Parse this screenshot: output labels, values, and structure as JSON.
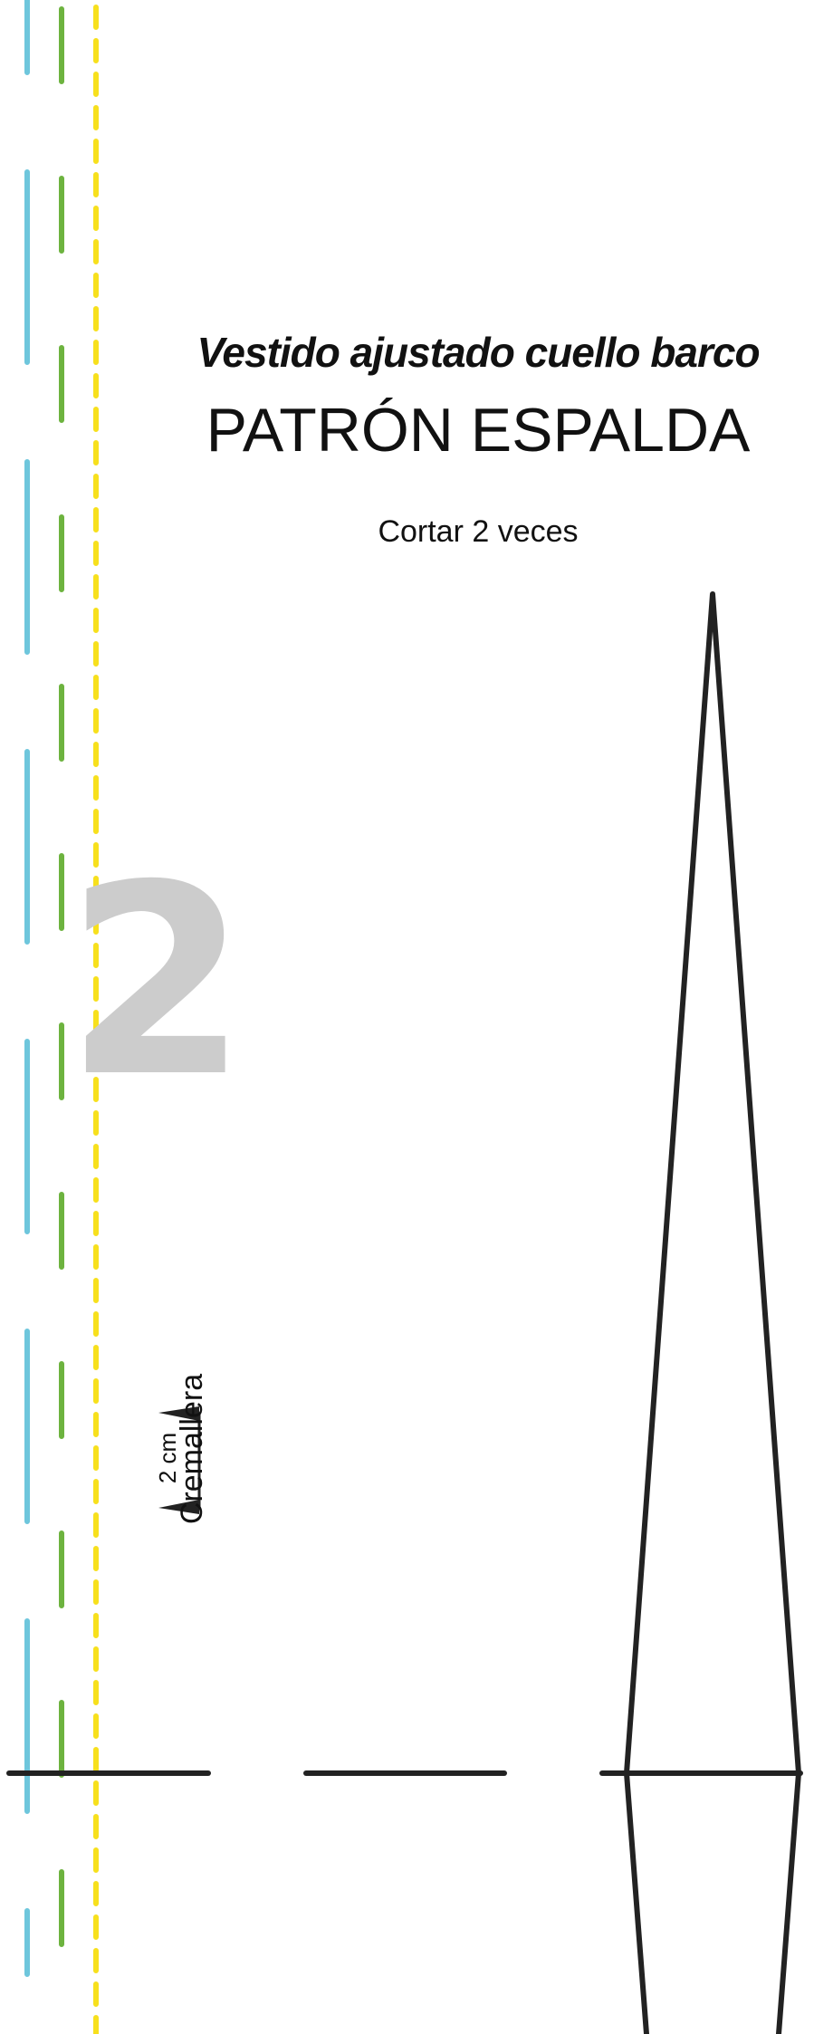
{
  "pattern": {
    "subtitle": "Vestido ajustado cuello barco",
    "title": "PATRÓN ESPALDA",
    "instruction": "Cortar 2 veces",
    "page_number": "2",
    "zipper_label": "Cremallera",
    "zipper_measure": "2 cm"
  },
  "colors": {
    "fold_line": "#6ec6dc",
    "seam_line": "#6db33f",
    "cut_line": "#f7e01d",
    "outline": "#222222",
    "page_number": "#cccccc"
  }
}
